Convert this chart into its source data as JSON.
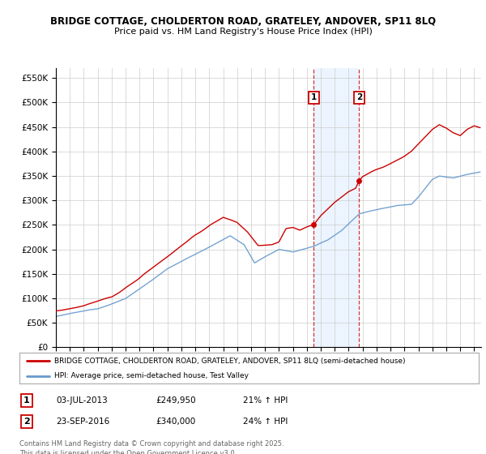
{
  "title_line1": "BRIDGE COTTAGE, CHOLDERTON ROAD, GRATELEY, ANDOVER, SP11 8LQ",
  "title_line2": "Price paid vs. HM Land Registry's House Price Index (HPI)",
  "ytick_values": [
    0,
    50000,
    100000,
    150000,
    200000,
    250000,
    300000,
    350000,
    400000,
    450000,
    500000,
    550000
  ],
  "red_line_color": "#cc0000",
  "blue_line_color": "#6699cc",
  "marker1_price": 249950,
  "marker2_price": 340000,
  "marker1_date_str": "03-JUL-2013",
  "marker2_date_str": "23-SEP-2016",
  "marker1_hpi": "21% ↑ HPI",
  "marker2_hpi": "24% ↑ HPI",
  "legend_red": "BRIDGE COTTAGE, CHOLDERTON ROAD, GRATELEY, ANDOVER, SP11 8LQ (semi-detached house)",
  "legend_blue": "HPI: Average price, semi-detached house, Test Valley",
  "footnote": "Contains HM Land Registry data © Crown copyright and database right 2025.\nThis data is licensed under the Open Government Licence v3.0.",
  "background_color": "#ffffff",
  "grid_color": "#cccccc",
  "shaded_color": "#ddeeff",
  "shaded_alpha": 0.55,
  "m1_x": 2013.5,
  "m2_x": 2016.75,
  "xmin": 1995,
  "xmax": 2025.5,
  "ymin": 0,
  "ymax": 570000
}
